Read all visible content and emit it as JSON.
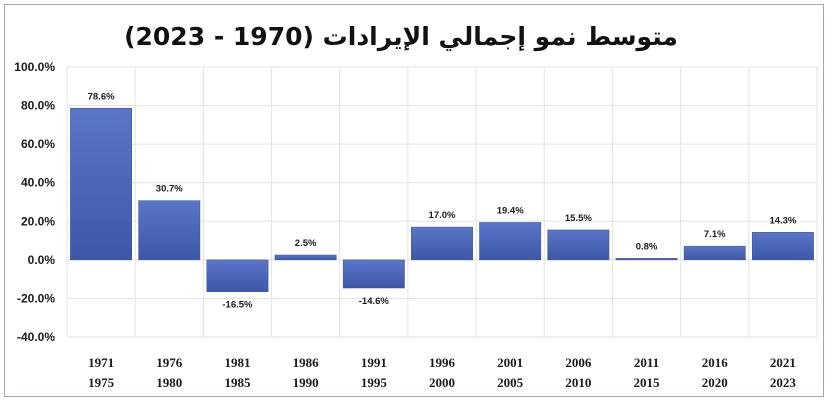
{
  "chart_data": {
    "type": "bar",
    "title": "متوسط نمو إجمالي الإيرادات (1970 - 2023)",
    "categories": [
      [
        "1971",
        "1975"
      ],
      [
        "1976",
        "1980"
      ],
      [
        "1981",
        "1985"
      ],
      [
        "1986",
        "1990"
      ],
      [
        "1991",
        "1995"
      ],
      [
        "1996",
        "2000"
      ],
      [
        "2001",
        "2005"
      ],
      [
        "2006",
        "2010"
      ],
      [
        "2011",
        "2015"
      ],
      [
        "2016",
        "2020"
      ],
      [
        "2021",
        "2023"
      ]
    ],
    "values": [
      78.6,
      30.7,
      -16.5,
      2.5,
      -14.6,
      17.0,
      19.4,
      15.5,
      0.8,
      7.1,
      14.3
    ],
    "data_labels": [
      "78.6%",
      "30.7%",
      "-16.5%",
      "2.5%",
      "-14.6%",
      "17.0%",
      "19.4%",
      "15.5%",
      "0.8%",
      "7.1%",
      "14.3%"
    ],
    "yticks": [
      "100.0%",
      "80.0%",
      "60.0%",
      "40.0%",
      "20.0%",
      "0.0%",
      "-20.0%",
      "-40.0%"
    ],
    "ylim": [
      -40,
      100
    ],
    "xlabel": "",
    "ylabel": "",
    "grid": true,
    "bar_color": "#4a64b8"
  }
}
